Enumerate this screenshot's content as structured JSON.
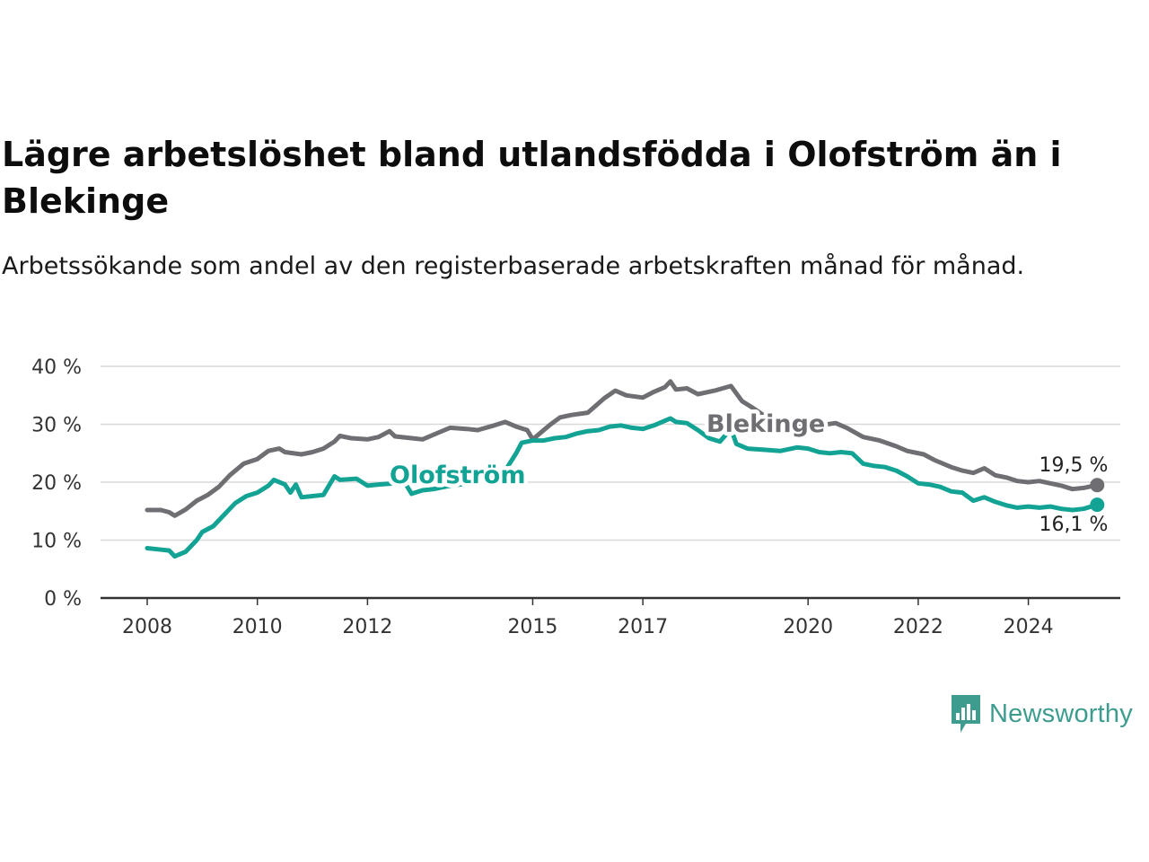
{
  "chart_data": {
    "type": "line",
    "title": "Lägre arbetslöshet bland utlandsfödda i Olofström än i Blekinge",
    "subtitle": "Arbetssökande som andel av den registerbaserade arbetskraften månad för månad.",
    "y_ticks": [
      "0 %",
      "10 %",
      "20 %",
      "30 %",
      "40 %"
    ],
    "ylim": [
      0,
      40
    ],
    "x_ticks": [
      {
        "label": "2008",
        "year": 2008
      },
      {
        "label": "2010",
        "year": 2010
      },
      {
        "label": "2012",
        "year": 2012
      },
      {
        "label": "2015",
        "year": 2015
      },
      {
        "label": "2017",
        "year": 2017
      },
      {
        "label": "2020",
        "year": 2020
      },
      {
        "label": "2022",
        "year": 2022
      },
      {
        "label": "2024",
        "year": 2024
      }
    ],
    "xlim": [
      2007.75,
      2025.8
    ],
    "grid": true,
    "series": [
      {
        "name": "Blekinge",
        "color": "#6e6e73",
        "end_label": "19,5 %",
        "points": [
          [
            2008.0,
            15.2
          ],
          [
            2008.25,
            15.2
          ],
          [
            2008.4,
            14.8
          ],
          [
            2008.5,
            14.2
          ],
          [
            2008.7,
            15.3
          ],
          [
            2008.9,
            16.8
          ],
          [
            2009.1,
            17.8
          ],
          [
            2009.3,
            19.2
          ],
          [
            2009.5,
            21.2
          ],
          [
            2009.75,
            23.2
          ],
          [
            2010.0,
            24.0
          ],
          [
            2010.2,
            25.4
          ],
          [
            2010.4,
            25.8
          ],
          [
            2010.5,
            25.2
          ],
          [
            2010.8,
            24.8
          ],
          [
            2011.0,
            25.2
          ],
          [
            2011.2,
            25.8
          ],
          [
            2011.4,
            27.0
          ],
          [
            2011.5,
            28.0
          ],
          [
            2011.7,
            27.6
          ],
          [
            2012.0,
            27.4
          ],
          [
            2012.2,
            27.8
          ],
          [
            2012.4,
            28.8
          ],
          [
            2012.5,
            27.9
          ],
          [
            2012.8,
            27.6
          ],
          [
            2013.0,
            27.4
          ],
          [
            2013.3,
            28.6
          ],
          [
            2013.5,
            29.4
          ],
          [
            2013.8,
            29.2
          ],
          [
            2014.0,
            29.0
          ],
          [
            2014.3,
            29.8
          ],
          [
            2014.5,
            30.4
          ],
          [
            2014.7,
            29.6
          ],
          [
            2014.9,
            29.0
          ],
          [
            2015.0,
            27.4
          ],
          [
            2015.3,
            29.8
          ],
          [
            2015.5,
            31.2
          ],
          [
            2015.7,
            31.6
          ],
          [
            2016.0,
            32.0
          ],
          [
            2016.3,
            34.5
          ],
          [
            2016.5,
            35.8
          ],
          [
            2016.7,
            35.0
          ],
          [
            2017.0,
            34.6
          ],
          [
            2017.2,
            35.6
          ],
          [
            2017.4,
            36.4
          ],
          [
            2017.5,
            37.4
          ],
          [
            2017.6,
            36.0
          ],
          [
            2017.8,
            36.2
          ],
          [
            2018.0,
            35.2
          ],
          [
            2018.3,
            35.8
          ],
          [
            2018.6,
            36.6
          ],
          [
            2018.8,
            34.0
          ],
          [
            2019.0,
            32.8
          ],
          [
            2019.2,
            31.5
          ],
          [
            2019.4,
            30.4
          ],
          [
            2019.6,
            30.0
          ],
          [
            2019.8,
            30.0
          ],
          [
            2020.0,
            29.6
          ],
          [
            2020.2,
            29.8
          ],
          [
            2020.5,
            30.2
          ],
          [
            2020.7,
            29.4
          ],
          [
            2021.0,
            27.8
          ],
          [
            2021.3,
            27.2
          ],
          [
            2021.6,
            26.2
          ],
          [
            2021.8,
            25.4
          ],
          [
            2022.1,
            24.8
          ],
          [
            2022.3,
            23.8
          ],
          [
            2022.6,
            22.6
          ],
          [
            2022.8,
            22.0
          ],
          [
            2023.0,
            21.6
          ],
          [
            2023.2,
            22.4
          ],
          [
            2023.4,
            21.2
          ],
          [
            2023.6,
            20.8
          ],
          [
            2023.8,
            20.2
          ],
          [
            2024.0,
            20.0
          ],
          [
            2024.2,
            20.2
          ],
          [
            2024.4,
            19.8
          ],
          [
            2024.6,
            19.4
          ],
          [
            2024.8,
            18.8
          ],
          [
            2025.0,
            19.0
          ],
          [
            2025.25,
            19.5
          ]
        ]
      },
      {
        "name": "Olofström",
        "color": "#12a394",
        "end_label": "16,1 %",
        "points": [
          [
            2008.0,
            8.6
          ],
          [
            2008.2,
            8.4
          ],
          [
            2008.4,
            8.2
          ],
          [
            2008.5,
            7.2
          ],
          [
            2008.7,
            8.0
          ],
          [
            2008.9,
            10.0
          ],
          [
            2009.0,
            11.4
          ],
          [
            2009.2,
            12.4
          ],
          [
            2009.4,
            14.4
          ],
          [
            2009.6,
            16.4
          ],
          [
            2009.8,
            17.6
          ],
          [
            2010.0,
            18.2
          ],
          [
            2010.2,
            19.4
          ],
          [
            2010.3,
            20.4
          ],
          [
            2010.5,
            19.6
          ],
          [
            2010.6,
            18.2
          ],
          [
            2010.7,
            19.6
          ],
          [
            2010.8,
            17.4
          ],
          [
            2011.0,
            17.6
          ],
          [
            2011.2,
            17.8
          ],
          [
            2011.4,
            21.0
          ],
          [
            2011.5,
            20.4
          ],
          [
            2011.8,
            20.6
          ],
          [
            2012.0,
            19.4
          ],
          [
            2012.2,
            19.6
          ],
          [
            2012.5,
            19.8
          ],
          [
            2012.7,
            19.6
          ],
          [
            2012.8,
            18.0
          ],
          [
            2013.0,
            18.6
          ],
          [
            2013.2,
            18.8
          ],
          [
            2013.5,
            19.4
          ],
          [
            2014.0,
            20.0
          ],
          [
            2014.3,
            21.0
          ],
          [
            2014.5,
            22.0
          ],
          [
            2014.6,
            23.5
          ],
          [
            2014.7,
            25.0
          ],
          [
            2014.8,
            26.8
          ],
          [
            2015.0,
            27.2
          ],
          [
            2015.2,
            27.2
          ],
          [
            2015.4,
            27.6
          ],
          [
            2015.6,
            27.8
          ],
          [
            2015.8,
            28.4
          ],
          [
            2016.0,
            28.8
          ],
          [
            2016.2,
            29.0
          ],
          [
            2016.4,
            29.6
          ],
          [
            2016.6,
            29.8
          ],
          [
            2016.8,
            29.4
          ],
          [
            2017.0,
            29.2
          ],
          [
            2017.2,
            29.8
          ],
          [
            2017.4,
            30.6
          ],
          [
            2017.5,
            31.0
          ],
          [
            2017.6,
            30.4
          ],
          [
            2017.8,
            30.2
          ],
          [
            2018.0,
            29.0
          ],
          [
            2018.2,
            27.6
          ],
          [
            2018.4,
            27.0
          ],
          [
            2018.6,
            29.2
          ],
          [
            2018.7,
            26.6
          ],
          [
            2018.9,
            25.8
          ],
          [
            2019.2,
            25.6
          ],
          [
            2019.5,
            25.4
          ],
          [
            2019.8,
            26.0
          ],
          [
            2020.0,
            25.8
          ],
          [
            2020.2,
            25.2
          ],
          [
            2020.4,
            25.0
          ],
          [
            2020.6,
            25.2
          ],
          [
            2020.8,
            25.0
          ],
          [
            2021.0,
            23.2
          ],
          [
            2021.2,
            22.8
          ],
          [
            2021.4,
            22.6
          ],
          [
            2021.6,
            22.0
          ],
          [
            2021.8,
            21.0
          ],
          [
            2022.0,
            19.8
          ],
          [
            2022.2,
            19.6
          ],
          [
            2022.4,
            19.2
          ],
          [
            2022.6,
            18.4
          ],
          [
            2022.8,
            18.2
          ],
          [
            2023.0,
            16.8
          ],
          [
            2023.2,
            17.4
          ],
          [
            2023.4,
            16.6
          ],
          [
            2023.6,
            16.0
          ],
          [
            2023.8,
            15.6
          ],
          [
            2024.0,
            15.8
          ],
          [
            2024.2,
            15.6
          ],
          [
            2024.4,
            15.8
          ],
          [
            2024.6,
            15.4
          ],
          [
            2024.8,
            15.2
          ],
          [
            2025.0,
            15.4
          ],
          [
            2025.25,
            16.1
          ]
        ]
      }
    ]
  },
  "brand": {
    "name": "Newsworthy",
    "color": "#3e9c8f"
  }
}
